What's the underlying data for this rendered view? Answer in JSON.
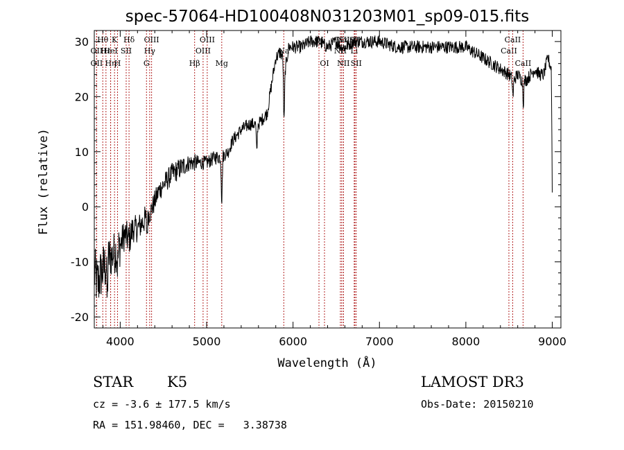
{
  "chart_data": {
    "type": "line",
    "title": "spec-57064-HD100408N031203M01_sp09-015.fits",
    "xlabel": "Wavelength (Å)",
    "ylabel": "Flux (relative)",
    "xlim": [
      3700,
      9100
    ],
    "ylim": [
      -22,
      32
    ],
    "xticks": [
      4000,
      5000,
      6000,
      7000,
      8000,
      9000
    ],
    "yticks": [
      -20,
      -10,
      0,
      10,
      20,
      30
    ],
    "spectrum_anchors": {
      "x": [
        3700,
        3740,
        3780,
        3820,
        3860,
        3900,
        3950,
        4000,
        4050,
        4100,
        4150,
        4200,
        4250,
        4300,
        4350,
        4400,
        4450,
        4500,
        4600,
        4700,
        4800,
        4900,
        5000,
        5100,
        5170,
        5250,
        5300,
        5400,
        5500,
        5600,
        5700,
        5800,
        5850,
        5890,
        5900,
        5950,
        6000,
        6100,
        6200,
        6300,
        6400,
        6500,
        6560,
        6600,
        6700,
        6800,
        6900,
        7000,
        7200,
        7400,
        7600,
        7800,
        8000,
        8100,
        8200,
        8300,
        8400,
        8500,
        8550,
        8600,
        8650,
        8700,
        8750,
        8800,
        8850,
        8900,
        8950,
        8990,
        9000
      ],
      "y": [
        -12,
        -14,
        -12,
        -11,
        -9,
        -9,
        -8,
        -7,
        -5,
        -6,
        -4,
        -4,
        -3,
        -2,
        -1,
        1,
        3,
        4,
        6,
        7,
        8,
        8,
        8,
        9,
        9,
        10,
        12,
        14,
        15,
        15,
        17,
        27,
        28,
        27,
        24,
        29,
        29,
        29,
        30,
        30,
        29,
        30,
        29,
        29,
        30,
        30,
        30,
        30,
        29,
        29,
        29,
        29,
        29,
        28,
        27,
        26,
        25,
        24,
        23,
        24,
        23,
        23,
        24,
        25,
        24,
        24,
        27,
        25,
        3
      ],
      "dips": [
        {
          "x": 3850,
          "depth": 7
        },
        {
          "x": 3970,
          "depth": 3
        },
        {
          "x": 4310,
          "depth": 3
        },
        {
          "x": 5175,
          "depth": 8
        },
        {
          "x": 5580,
          "depth": 5
        },
        {
          "x": 5895,
          "depth": 10
        },
        {
          "x": 8545,
          "depth": 3
        },
        {
          "x": 8665,
          "depth": 4
        }
      ],
      "noise_amplitude": [
        5,
        4,
        3,
        2.5,
        2,
        2,
        2,
        1.6,
        1.3,
        1.3,
        1.2,
        1.2,
        1.2,
        1.2
      ]
    },
    "spectral_lines": [
      {
        "label": "Hθ",
        "x": 3798,
        "row": 1
      },
      {
        "label": "OII",
        "x": 3727,
        "row": 2
      },
      {
        "label": "OII",
        "x": 3727,
        "row": 3
      },
      {
        "label": "Hε",
        "x": 3835,
        "row": 2
      },
      {
        "label": "Hη",
        "x": 3889,
        "row": 3
      },
      {
        "label": "K",
        "x": 3934,
        "row": 1
      },
      {
        "label": "HeI",
        "x": 3889,
        "row": 2
      },
      {
        "label": "H",
        "x": 3969,
        "row": 3
      },
      {
        "label": "Hδ",
        "x": 4102,
        "row": 1
      },
      {
        "label": "SII",
        "x": 4069,
        "row": 2
      },
      {
        "label": "OIII",
        "x": 4363,
        "row": 1
      },
      {
        "label": "Hγ",
        "x": 4341,
        "row": 2
      },
      {
        "label": "G",
        "x": 4304,
        "row": 3
      },
      {
        "label": "Hβ",
        "x": 4861,
        "row": 3
      },
      {
        "label": "OIII",
        "x": 4959,
        "row": 2
      },
      {
        "label": "OIII",
        "x": 5007,
        "row": 1
      },
      {
        "label": "Mg",
        "x": 5175,
        "row": 3
      },
      {
        "label": "Na",
        "x": 5893,
        "row": 2
      },
      {
        "label": "OI",
        "x": 6300,
        "row": 1
      },
      {
        "label": "OI",
        "x": 6364,
        "row": 3
      },
      {
        "label": "Hα",
        "x": 6563,
        "row": 1
      },
      {
        "label": "NII",
        "x": 6548,
        "row": 2
      },
      {
        "label": "NII",
        "x": 6583,
        "row": 3
      },
      {
        "label": "NII",
        "x": 6583,
        "row": 1
      },
      {
        "label": "Li",
        "x": 6708,
        "row": 2
      },
      {
        "label": "SII",
        "x": 6716,
        "row": 1
      },
      {
        "label": "SII",
        "x": 6731,
        "row": 3
      },
      {
        "label": "CaII",
        "x": 8498,
        "row": 2
      },
      {
        "label": "CaII",
        "x": 8542,
        "row": 1
      },
      {
        "label": "CaII",
        "x": 8662,
        "row": 3
      }
    ]
  },
  "info": {
    "object_class": "STAR",
    "subclass": "K5",
    "redshift": "cz = -3.6 ± 177.5 km/s",
    "coords": "RA = 151.98460, DEC =   3.38738",
    "survey": "LAMOST DR3",
    "obs_date": "Obs-Date: 20150210"
  },
  "colors": {
    "spectrum": "#000000",
    "line_marker": "#b22222",
    "axis": "#000000"
  }
}
